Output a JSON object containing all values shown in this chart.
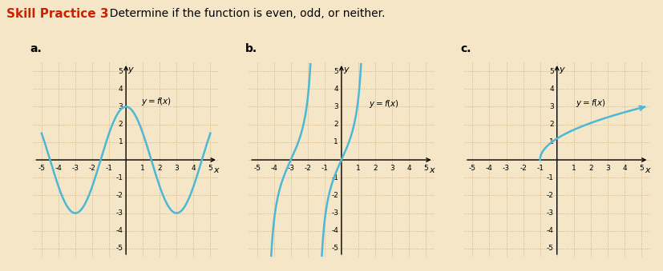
{
  "bg_color": "#f5e6c8",
  "title_text": "Skill Practice 3",
  "title_color": "#cc2200",
  "instruction": "  Determine if the function is even, odd, or neither.",
  "labels": [
    "a.",
    "b.",
    "c."
  ],
  "curve_color": "#4db8d4",
  "axis_color": "#000000",
  "grid_color": "#c8a878",
  "label_color": "#000000",
  "xlim": [
    -5.5,
    5.5
  ],
  "ylim": [
    -5.5,
    5.5
  ],
  "xticks": [
    -5,
    -4,
    -3,
    -2,
    -1,
    1,
    2,
    3,
    4,
    5
  ],
  "yticks": [
    -5,
    -4,
    -3,
    -2,
    -1,
    1,
    2,
    3,
    4,
    5
  ]
}
